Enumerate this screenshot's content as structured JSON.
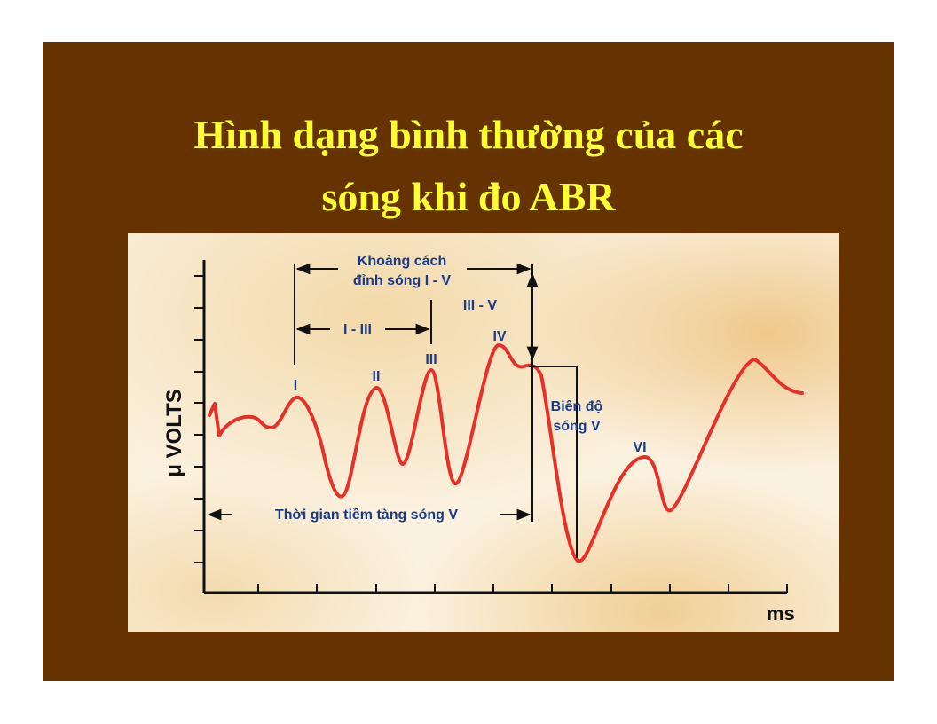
{
  "slide": {
    "title_line1": "Hình dạng bình thường của các",
    "title_line2": "sóng khi đo ABR",
    "background": "#663300",
    "title_color": "#ffff33"
  },
  "diagram": {
    "y_axis_label": "μ VOLTS",
    "x_axis_label": "ms",
    "wave_color": "#e8302a",
    "label_color": "#1a3a8a",
    "peaks": [
      "I",
      "II",
      "III",
      "IV",
      "VI"
    ],
    "interpeak_I_V_line1": "Khoảng cách",
    "interpeak_I_V_line2": "đỉnh sóng I - V",
    "interpeak_I_III": "I - III",
    "interpeak_III_V": "III - V",
    "amplitude_V_line1": "Biên độ",
    "amplitude_V_line2": "sóng V",
    "latency_V": "Thời gian tiềm tàng sóng V"
  }
}
